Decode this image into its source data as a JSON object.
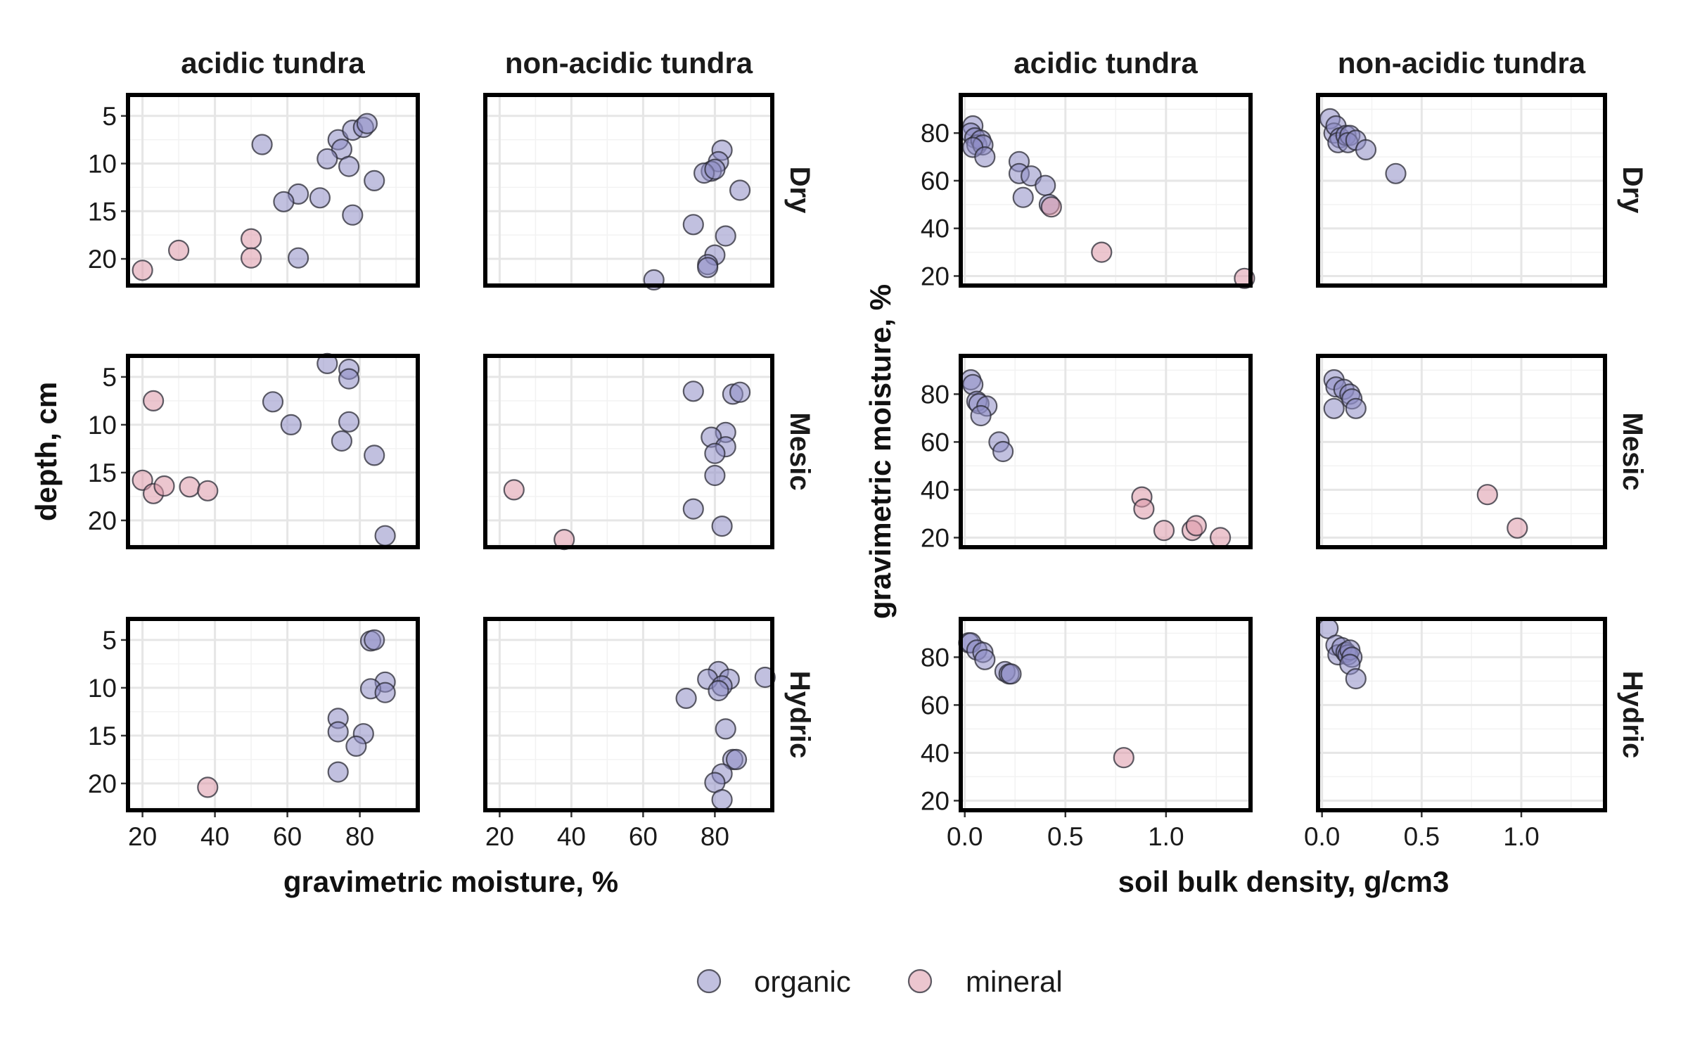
{
  "colors": {
    "organic": "#8e8cc4",
    "mineral": "#dc98a8",
    "outline": "#2b2b35",
    "grid_major": "#e6e6e6",
    "grid_minor": "#f2f2f2",
    "frame": "#000000"
  },
  "columns": [
    "acidic tundra",
    "non-acidic tundra"
  ],
  "rows": [
    "Dry",
    "Mesic",
    "Hydric"
  ],
  "legend": {
    "organic": "organic",
    "mineral": "mineral"
  },
  "chart_data": [
    {
      "type": "scatter",
      "xlabel": "gravimetric moisture, %",
      "ylabel": "depth, cm",
      "xlim": [
        16,
        96
      ],
      "ylim": [
        22.8,
        2.8
      ],
      "y_reversed": true,
      "xticks": [
        20,
        40,
        60,
        80
      ],
      "yticks": [
        5,
        10,
        15,
        20
      ],
      "facets": [
        {
          "column": "acidic tundra",
          "row": "Dry",
          "points": [
            {
              "x": 53,
              "y": 8,
              "class": "organic"
            },
            {
              "x": 74,
              "y": 7.5,
              "class": "organic"
            },
            {
              "x": 78,
              "y": 6.5,
              "class": "organic"
            },
            {
              "x": 81,
              "y": 6.2,
              "class": "organic"
            },
            {
              "x": 82,
              "y": 5.8,
              "class": "organic"
            },
            {
              "x": 75,
              "y": 8.5,
              "class": "organic"
            },
            {
              "x": 71,
              "y": 9.5,
              "class": "organic"
            },
            {
              "x": 77,
              "y": 10.3,
              "class": "organic"
            },
            {
              "x": 84,
              "y": 11.8,
              "class": "organic"
            },
            {
              "x": 63,
              "y": 13.2,
              "class": "organic"
            },
            {
              "x": 59,
              "y": 14,
              "class": "organic"
            },
            {
              "x": 69,
              "y": 13.6,
              "class": "organic"
            },
            {
              "x": 78,
              "y": 15.4,
              "class": "organic"
            },
            {
              "x": 63,
              "y": 19.9,
              "class": "organic"
            },
            {
              "x": 50,
              "y": 17.9,
              "class": "mineral"
            },
            {
              "x": 30,
              "y": 19.1,
              "class": "mineral"
            },
            {
              "x": 50,
              "y": 19.9,
              "class": "mineral"
            },
            {
              "x": 20,
              "y": 21.2,
              "class": "mineral"
            }
          ]
        },
        {
          "column": "non-acidic tundra",
          "row": "Dry",
          "points": [
            {
              "x": 82,
              "y": 8.6,
              "class": "organic"
            },
            {
              "x": 81,
              "y": 9.8,
              "class": "organic"
            },
            {
              "x": 79,
              "y": 10.8,
              "class": "organic"
            },
            {
              "x": 77,
              "y": 11,
              "class": "organic"
            },
            {
              "x": 80,
              "y": 10.6,
              "class": "organic"
            },
            {
              "x": 87,
              "y": 12.8,
              "class": "organic"
            },
            {
              "x": 74,
              "y": 16.4,
              "class": "organic"
            },
            {
              "x": 83,
              "y": 17.6,
              "class": "organic"
            },
            {
              "x": 80,
              "y": 19.6,
              "class": "organic"
            },
            {
              "x": 78,
              "y": 20.6,
              "class": "organic"
            },
            {
              "x": 78,
              "y": 20.9,
              "class": "organic"
            },
            {
              "x": 63,
              "y": 22.2,
              "class": "organic"
            }
          ]
        },
        {
          "column": "acidic tundra",
          "row": "Mesic",
          "points": [
            {
              "x": 71,
              "y": 3.6,
              "class": "organic"
            },
            {
              "x": 77,
              "y": 4.2,
              "class": "organic"
            },
            {
              "x": 77,
              "y": 5.2,
              "class": "organic"
            },
            {
              "x": 56,
              "y": 7.6,
              "class": "organic"
            },
            {
              "x": 77,
              "y": 9.7,
              "class": "organic"
            },
            {
              "x": 61,
              "y": 10,
              "class": "organic"
            },
            {
              "x": 75,
              "y": 11.7,
              "class": "organic"
            },
            {
              "x": 84,
              "y": 13.2,
              "class": "organic"
            },
            {
              "x": 87,
              "y": 21.6,
              "class": "organic"
            },
            {
              "x": 23,
              "y": 7.5,
              "class": "mineral"
            },
            {
              "x": 20,
              "y": 15.8,
              "class": "mineral"
            },
            {
              "x": 23,
              "y": 17.2,
              "class": "mineral"
            },
            {
              "x": 26,
              "y": 16.4,
              "class": "mineral"
            },
            {
              "x": 33,
              "y": 16.5,
              "class": "mineral"
            },
            {
              "x": 38,
              "y": 16.9,
              "class": "mineral"
            }
          ]
        },
        {
          "column": "non-acidic tundra",
          "row": "Mesic",
          "points": [
            {
              "x": 74,
              "y": 6.5,
              "class": "organic"
            },
            {
              "x": 85,
              "y": 6.8,
              "class": "organic"
            },
            {
              "x": 87,
              "y": 6.6,
              "class": "organic"
            },
            {
              "x": 83,
              "y": 10.8,
              "class": "organic"
            },
            {
              "x": 79,
              "y": 11.3,
              "class": "organic"
            },
            {
              "x": 83,
              "y": 12.3,
              "class": "organic"
            },
            {
              "x": 80,
              "y": 13,
              "class": "organic"
            },
            {
              "x": 80,
              "y": 15.3,
              "class": "organic"
            },
            {
              "x": 74,
              "y": 18.8,
              "class": "organic"
            },
            {
              "x": 82,
              "y": 20.6,
              "class": "organic"
            },
            {
              "x": 24,
              "y": 16.8,
              "class": "mineral"
            },
            {
              "x": 38,
              "y": 22,
              "class": "mineral"
            }
          ]
        },
        {
          "column": "acidic tundra",
          "row": "Hydric",
          "points": [
            {
              "x": 83,
              "y": 5.1,
              "class": "organic"
            },
            {
              "x": 84,
              "y": 5,
              "class": "organic"
            },
            {
              "x": 87,
              "y": 9.4,
              "class": "organic"
            },
            {
              "x": 83,
              "y": 10.1,
              "class": "organic"
            },
            {
              "x": 87,
              "y": 10.5,
              "class": "organic"
            },
            {
              "x": 74,
              "y": 13.2,
              "class": "organic"
            },
            {
              "x": 74,
              "y": 14.6,
              "class": "organic"
            },
            {
              "x": 81,
              "y": 14.8,
              "class": "organic"
            },
            {
              "x": 79,
              "y": 16.1,
              "class": "organic"
            },
            {
              "x": 74,
              "y": 18.8,
              "class": "organic"
            },
            {
              "x": 38,
              "y": 20.4,
              "class": "mineral"
            }
          ]
        },
        {
          "column": "non-acidic tundra",
          "row": "Hydric",
          "points": [
            {
              "x": 81,
              "y": 8.3,
              "class": "organic"
            },
            {
              "x": 78,
              "y": 9.1,
              "class": "organic"
            },
            {
              "x": 84,
              "y": 9.1,
              "class": "organic"
            },
            {
              "x": 94,
              "y": 8.9,
              "class": "organic"
            },
            {
              "x": 82,
              "y": 9.8,
              "class": "organic"
            },
            {
              "x": 81,
              "y": 10.3,
              "class": "organic"
            },
            {
              "x": 72,
              "y": 11.1,
              "class": "organic"
            },
            {
              "x": 83,
              "y": 14.3,
              "class": "organic"
            },
            {
              "x": 85,
              "y": 17.5,
              "class": "organic"
            },
            {
              "x": 86,
              "y": 17.5,
              "class": "organic"
            },
            {
              "x": 82,
              "y": 19,
              "class": "organic"
            },
            {
              "x": 80,
              "y": 19.9,
              "class": "organic"
            },
            {
              "x": 82,
              "y": 21.7,
              "class": "organic"
            }
          ]
        }
      ]
    },
    {
      "type": "scatter",
      "xlabel": "soil bulk density, g/cm3",
      "ylabel": "gravimetric moisture, %",
      "xlim": [
        -0.02,
        1.42
      ],
      "ylim": [
        16,
        96
      ],
      "y_reversed": false,
      "xticks": [
        0.0,
        0.5,
        1.0
      ],
      "xtick_labels": [
        "0.0",
        "0.5",
        "1.0"
      ],
      "yticks": [
        20,
        40,
        60,
        80
      ],
      "facets": [
        {
          "column": "acidic tundra",
          "row": "Dry",
          "points": [
            {
              "x": 0.04,
              "y": 83,
              "class": "organic"
            },
            {
              "x": 0.03,
              "y": 80,
              "class": "organic"
            },
            {
              "x": 0.05,
              "y": 78,
              "class": "organic"
            },
            {
              "x": 0.06,
              "y": 75,
              "class": "organic"
            },
            {
              "x": 0.08,
              "y": 77,
              "class": "organic"
            },
            {
              "x": 0.09,
              "y": 75,
              "class": "organic"
            },
            {
              "x": 0.04,
              "y": 74,
              "class": "organic"
            },
            {
              "x": 0.1,
              "y": 70,
              "class": "organic"
            },
            {
              "x": 0.27,
              "y": 68,
              "class": "organic"
            },
            {
              "x": 0.27,
              "y": 63,
              "class": "organic"
            },
            {
              "x": 0.33,
              "y": 62,
              "class": "organic"
            },
            {
              "x": 0.4,
              "y": 58,
              "class": "organic"
            },
            {
              "x": 0.29,
              "y": 53,
              "class": "organic"
            },
            {
              "x": 0.42,
              "y": 50,
              "class": "organic"
            },
            {
              "x": 0.43,
              "y": 49,
              "class": "mineral"
            },
            {
              "x": 0.68,
              "y": 30,
              "class": "mineral"
            },
            {
              "x": 1.39,
              "y": 19,
              "class": "mineral"
            }
          ]
        },
        {
          "column": "non-acidic tundra",
          "row": "Dry",
          "points": [
            {
              "x": 0.04,
              "y": 86,
              "class": "organic"
            },
            {
              "x": 0.06,
              "y": 80,
              "class": "organic"
            },
            {
              "x": 0.07,
              "y": 83,
              "class": "organic"
            },
            {
              "x": 0.09,
              "y": 78,
              "class": "organic"
            },
            {
              "x": 0.08,
              "y": 76,
              "class": "organic"
            },
            {
              "x": 0.12,
              "y": 79,
              "class": "organic"
            },
            {
              "x": 0.14,
              "y": 79,
              "class": "organic"
            },
            {
              "x": 0.13,
              "y": 76,
              "class": "organic"
            },
            {
              "x": 0.17,
              "y": 77,
              "class": "organic"
            },
            {
              "x": 0.22,
              "y": 73,
              "class": "organic"
            },
            {
              "x": 0.37,
              "y": 63,
              "class": "organic"
            }
          ]
        },
        {
          "column": "acidic tundra",
          "row": "Mesic",
          "points": [
            {
              "x": 0.03,
              "y": 86,
              "class": "organic"
            },
            {
              "x": 0.04,
              "y": 84,
              "class": "organic"
            },
            {
              "x": 0.06,
              "y": 77,
              "class": "organic"
            },
            {
              "x": 0.07,
              "y": 76,
              "class": "organic"
            },
            {
              "x": 0.11,
              "y": 75,
              "class": "organic"
            },
            {
              "x": 0.08,
              "y": 71,
              "class": "organic"
            },
            {
              "x": 0.17,
              "y": 60,
              "class": "organic"
            },
            {
              "x": 0.19,
              "y": 56,
              "class": "organic"
            },
            {
              "x": 0.88,
              "y": 37,
              "class": "mineral"
            },
            {
              "x": 0.89,
              "y": 32,
              "class": "mineral"
            },
            {
              "x": 0.99,
              "y": 23,
              "class": "mineral"
            },
            {
              "x": 1.13,
              "y": 23,
              "class": "mineral"
            },
            {
              "x": 1.15,
              "y": 25,
              "class": "mineral"
            },
            {
              "x": 1.27,
              "y": 20,
              "class": "mineral"
            }
          ]
        },
        {
          "column": "non-acidic tundra",
          "row": "Mesic",
          "points": [
            {
              "x": 0.06,
              "y": 86,
              "class": "organic"
            },
            {
              "x": 0.07,
              "y": 83,
              "class": "organic"
            },
            {
              "x": 0.11,
              "y": 82,
              "class": "organic"
            },
            {
              "x": 0.14,
              "y": 80,
              "class": "organic"
            },
            {
              "x": 0.15,
              "y": 78,
              "class": "organic"
            },
            {
              "x": 0.06,
              "y": 74,
              "class": "organic"
            },
            {
              "x": 0.17,
              "y": 74,
              "class": "organic"
            },
            {
              "x": 0.83,
              "y": 38,
              "class": "mineral"
            },
            {
              "x": 0.98,
              "y": 24,
              "class": "mineral"
            }
          ]
        },
        {
          "column": "acidic tundra",
          "row": "Hydric",
          "points": [
            {
              "x": 0.02,
              "y": 86,
              "class": "organic"
            },
            {
              "x": 0.03,
              "y": 86,
              "class": "organic"
            },
            {
              "x": 0.06,
              "y": 83,
              "class": "organic"
            },
            {
              "x": 0.09,
              "y": 82,
              "class": "organic"
            },
            {
              "x": 0.1,
              "y": 79,
              "class": "organic"
            },
            {
              "x": 0.2,
              "y": 74,
              "class": "organic"
            },
            {
              "x": 0.22,
              "y": 73,
              "class": "organic"
            },
            {
              "x": 0.23,
              "y": 73,
              "class": "organic"
            },
            {
              "x": 0.79,
              "y": 38,
              "class": "mineral"
            }
          ]
        },
        {
          "column": "non-acidic tundra",
          "row": "Hydric",
          "points": [
            {
              "x": 0.03,
              "y": 92,
              "class": "organic"
            },
            {
              "x": 0.07,
              "y": 85,
              "class": "organic"
            },
            {
              "x": 0.08,
              "y": 81,
              "class": "organic"
            },
            {
              "x": 0.1,
              "y": 84,
              "class": "organic"
            },
            {
              "x": 0.12,
              "y": 82,
              "class": "organic"
            },
            {
              "x": 0.13,
              "y": 81,
              "class": "organic"
            },
            {
              "x": 0.14,
              "y": 83,
              "class": "organic"
            },
            {
              "x": 0.15,
              "y": 80,
              "class": "organic"
            },
            {
              "x": 0.14,
              "y": 77,
              "class": "organic"
            },
            {
              "x": 0.17,
              "y": 71,
              "class": "organic"
            }
          ]
        }
      ]
    }
  ]
}
